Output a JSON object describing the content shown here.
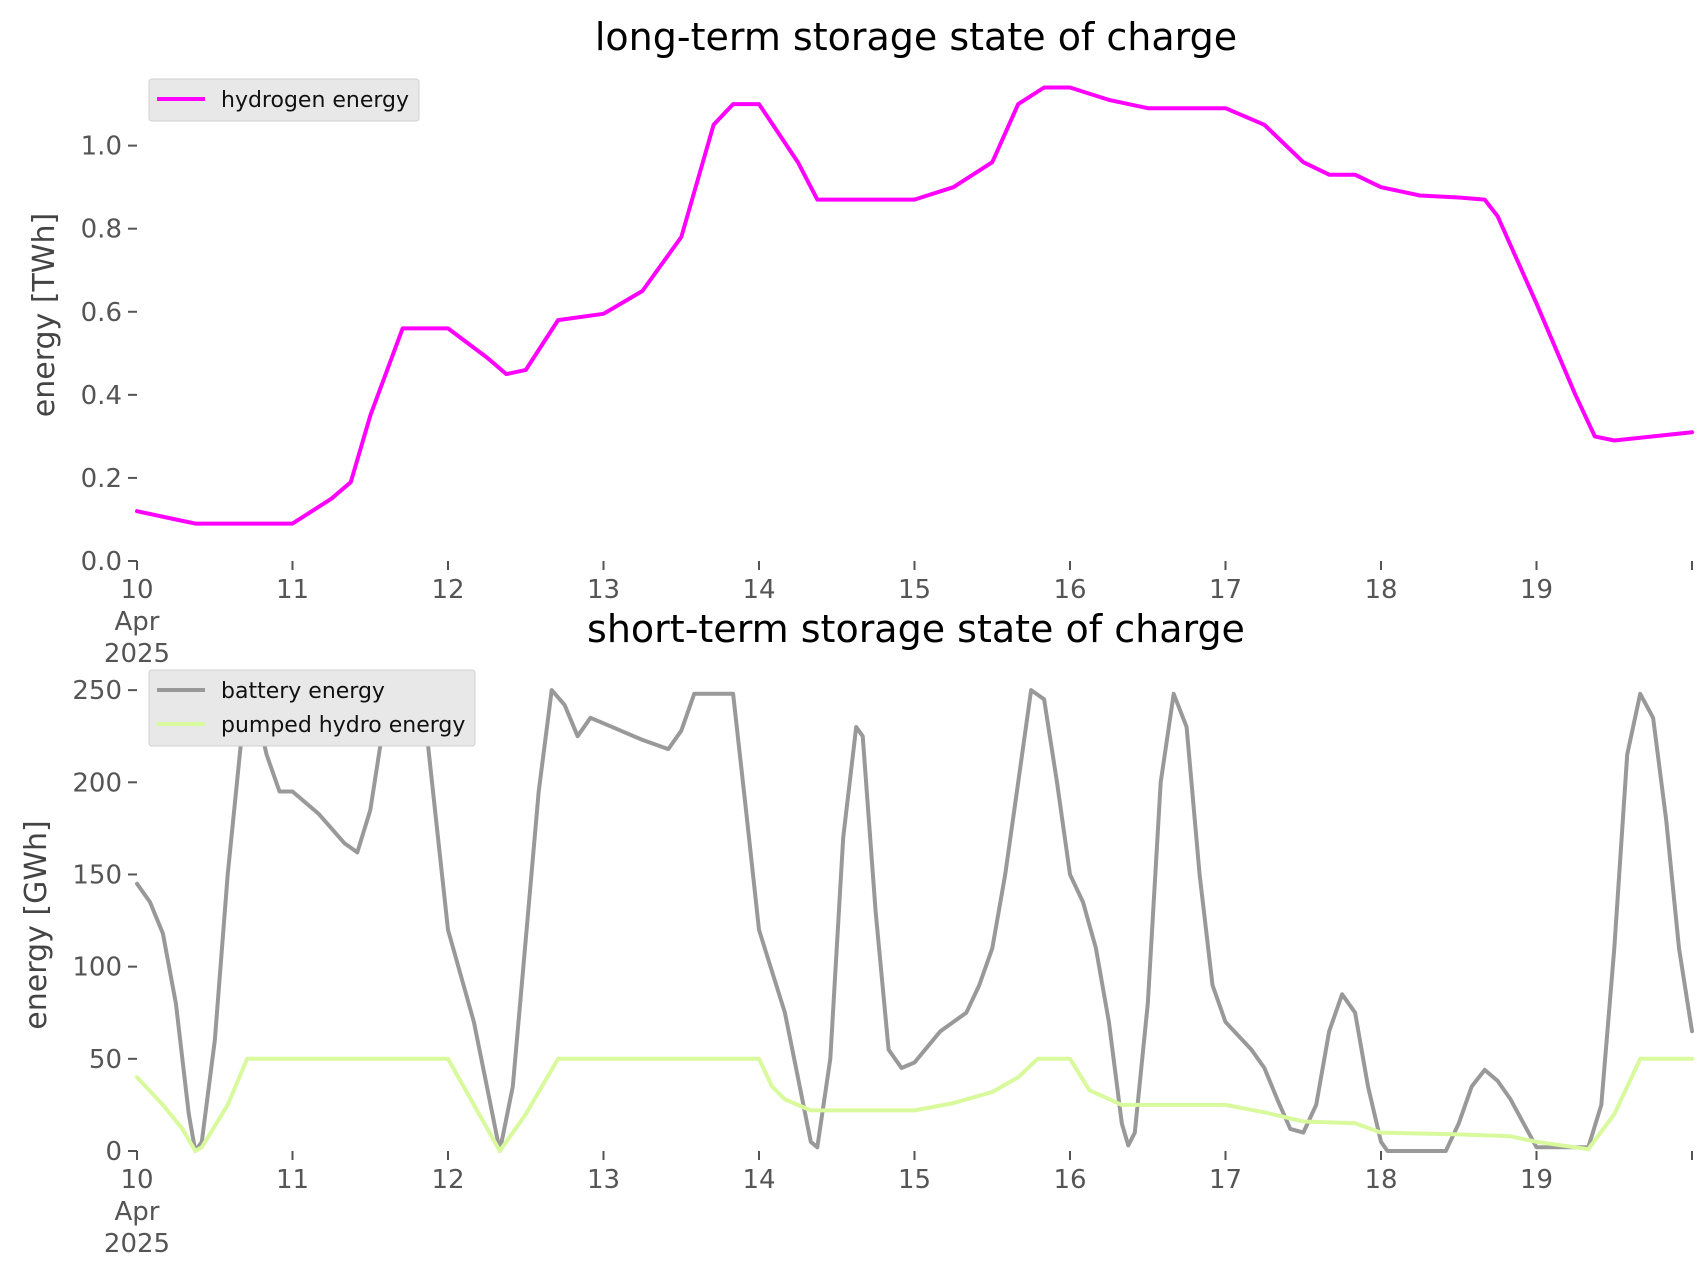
{
  "chart_data": [
    {
      "type": "line",
      "title": "long-term storage state of charge",
      "xlabel": "",
      "ylabel": "energy [TWh]",
      "xlim": [
        "2025-04-10",
        "2025-04-20"
      ],
      "ylim": [
        0,
        1.17
      ],
      "x_ticks": [
        {
          "date": "2025-04-10",
          "lines": [
            "10",
            "Apr",
            "2025"
          ]
        },
        {
          "date": "2025-04-11",
          "lines": [
            "11"
          ]
        },
        {
          "date": "2025-04-12",
          "lines": [
            "12"
          ]
        },
        {
          "date": "2025-04-13",
          "lines": [
            "13"
          ]
        },
        {
          "date": "2025-04-14",
          "lines": [
            "14"
          ]
        },
        {
          "date": "2025-04-15",
          "lines": [
            "15"
          ]
        },
        {
          "date": "2025-04-16",
          "lines": [
            "16"
          ]
        },
        {
          "date": "2025-04-17",
          "lines": [
            "17"
          ]
        },
        {
          "date": "2025-04-18",
          "lines": [
            "18"
          ]
        },
        {
          "date": "2025-04-19",
          "lines": [
            "19"
          ]
        },
        {
          "date": "2025-04-20",
          "lines": [
            ""
          ]
        }
      ],
      "y_ticks": [
        {
          "value": 0.0,
          "label": "0.0"
        },
        {
          "value": 0.2,
          "label": "0.2"
        },
        {
          "value": 0.4,
          "label": "0.4"
        },
        {
          "value": 0.6,
          "label": "0.6"
        },
        {
          "value": 0.8,
          "label": "0.8"
        },
        {
          "value": 1.0,
          "label": "1.0"
        }
      ],
      "grid": false,
      "legend_position": "top-left",
      "series": [
        {
          "name": "hydrogen energy",
          "color": "#ff00ff",
          "points": [
            [
              "2025-04-10T00:00",
              0.12
            ],
            [
              "2025-04-10T06:00",
              0.1
            ],
            [
              "2025-04-10T09:00",
              0.09
            ],
            [
              "2025-04-11T00:00",
              0.09
            ],
            [
              "2025-04-11T06:00",
              0.15
            ],
            [
              "2025-04-11T09:00",
              0.19
            ],
            [
              "2025-04-11T12:00",
              0.35
            ],
            [
              "2025-04-11T17:00",
              0.56
            ],
            [
              "2025-04-12T00:00",
              0.56
            ],
            [
              "2025-04-12T06:00",
              0.49
            ],
            [
              "2025-04-12T09:00",
              0.45
            ],
            [
              "2025-04-12T12:00",
              0.46
            ],
            [
              "2025-04-12T17:00",
              0.58
            ],
            [
              "2025-04-13T00:00",
              0.595
            ],
            [
              "2025-04-13T06:00",
              0.65
            ],
            [
              "2025-04-13T12:00",
              0.78
            ],
            [
              "2025-04-13T17:00",
              1.05
            ],
            [
              "2025-04-13T20:00",
              1.1
            ],
            [
              "2025-04-14T00:00",
              1.1
            ],
            [
              "2025-04-14T06:00",
              0.96
            ],
            [
              "2025-04-14T09:00",
              0.87
            ],
            [
              "2025-04-15T00:00",
              0.87
            ],
            [
              "2025-04-15T06:00",
              0.9
            ],
            [
              "2025-04-15T12:00",
              0.96
            ],
            [
              "2025-04-15T16:00",
              1.1
            ],
            [
              "2025-04-15T20:00",
              1.14
            ],
            [
              "2025-04-16T00:00",
              1.14
            ],
            [
              "2025-04-16T06:00",
              1.11
            ],
            [
              "2025-04-16T12:00",
              1.09
            ],
            [
              "2025-04-17T00:00",
              1.09
            ],
            [
              "2025-04-17T06:00",
              1.05
            ],
            [
              "2025-04-17T12:00",
              0.96
            ],
            [
              "2025-04-17T16:00",
              0.93
            ],
            [
              "2025-04-17T20:00",
              0.93
            ],
            [
              "2025-04-18T00:00",
              0.9
            ],
            [
              "2025-04-18T06:00",
              0.88
            ],
            [
              "2025-04-18T12:00",
              0.875
            ],
            [
              "2025-04-18T16:00",
              0.87
            ],
            [
              "2025-04-18T18:00",
              0.83
            ],
            [
              "2025-04-19T00:00",
              0.62
            ],
            [
              "2025-04-19T06:00",
              0.4
            ],
            [
              "2025-04-19T09:00",
              0.3
            ],
            [
              "2025-04-19T12:00",
              0.29
            ],
            [
              "2025-04-19T18:00",
              0.3
            ],
            [
              "2025-04-20T00:00",
              0.31
            ]
          ]
        }
      ]
    },
    {
      "type": "line",
      "title": "short-term storage state of charge",
      "xlabel": "",
      "ylabel": "energy [GWh]",
      "xlim": [
        "2025-04-10",
        "2025-04-20"
      ],
      "ylim": [
        0,
        262
      ],
      "x_ticks": [
        {
          "date": "2025-04-10",
          "lines": [
            "10",
            "Apr",
            "2025"
          ]
        },
        {
          "date": "2025-04-11",
          "lines": [
            "11"
          ]
        },
        {
          "date": "2025-04-12",
          "lines": [
            "12"
          ]
        },
        {
          "date": "2025-04-13",
          "lines": [
            "13"
          ]
        },
        {
          "date": "2025-04-14",
          "lines": [
            "14"
          ]
        },
        {
          "date": "2025-04-15",
          "lines": [
            "15"
          ]
        },
        {
          "date": "2025-04-16",
          "lines": [
            "16"
          ]
        },
        {
          "date": "2025-04-17",
          "lines": [
            "17"
          ]
        },
        {
          "date": "2025-04-18",
          "lines": [
            "18"
          ]
        },
        {
          "date": "2025-04-19",
          "lines": [
            "19"
          ]
        },
        {
          "date": "2025-04-20",
          "lines": [
            ""
          ]
        }
      ],
      "y_ticks": [
        {
          "value": 0,
          "label": "0"
        },
        {
          "value": 50,
          "label": "50"
        },
        {
          "value": 100,
          "label": "100"
        },
        {
          "value": 150,
          "label": "150"
        },
        {
          "value": 200,
          "label": "200"
        },
        {
          "value": 250,
          "label": "250"
        }
      ],
      "grid": false,
      "legend_position": "top-left",
      "series": [
        {
          "name": "battery energy",
          "color": "#999999",
          "points": [
            [
              "2025-04-10T00:00",
              145
            ],
            [
              "2025-04-10T02:00",
              135
            ],
            [
              "2025-04-10T04:00",
              118
            ],
            [
              "2025-04-10T06:00",
              80
            ],
            [
              "2025-04-10T08:00",
              20
            ],
            [
              "2025-04-10T09:00",
              0
            ],
            [
              "2025-04-10T10:00",
              5
            ],
            [
              "2025-04-10T12:00",
              60
            ],
            [
              "2025-04-10T14:00",
              150
            ],
            [
              "2025-04-10T16:00",
              220
            ],
            [
              "2025-04-10T18:00",
              245
            ],
            [
              "2025-04-10T20:00",
              215
            ],
            [
              "2025-04-10T22:00",
              195
            ],
            [
              "2025-04-11T00:00",
              195
            ],
            [
              "2025-04-11T04:00",
              183
            ],
            [
              "2025-04-11T08:00",
              167
            ],
            [
              "2025-04-11T10:00",
              162
            ],
            [
              "2025-04-11T12:00",
              185
            ],
            [
              "2025-04-11T14:00",
              230
            ],
            [
              "2025-04-11T16:00",
              250
            ],
            [
              "2025-04-11T20:00",
              250
            ],
            [
              "2025-04-11T22:00",
              185
            ],
            [
              "2025-04-12T00:00",
              120
            ],
            [
              "2025-04-12T04:00",
              70
            ],
            [
              "2025-04-12T06:00",
              35
            ],
            [
              "2025-04-12T08:00",
              0
            ],
            [
              "2025-04-12T10:00",
              35
            ],
            [
              "2025-04-12T12:00",
              115
            ],
            [
              "2025-04-12T14:00",
              195
            ],
            [
              "2025-04-12T16:00",
              250
            ],
            [
              "2025-04-12T18:00",
              242
            ],
            [
              "2025-04-12T20:00",
              225
            ],
            [
              "2025-04-12T22:00",
              235
            ],
            [
              "2025-04-13T00:00",
              232
            ],
            [
              "2025-04-13T06:00",
              223
            ],
            [
              "2025-04-13T10:00",
              218
            ],
            [
              "2025-04-13T12:00",
              228
            ],
            [
              "2025-04-13T14:00",
              248
            ],
            [
              "2025-04-13T20:00",
              248
            ],
            [
              "2025-04-13T22:00",
              185
            ],
            [
              "2025-04-14T00:00",
              120
            ],
            [
              "2025-04-14T04:00",
              75
            ],
            [
              "2025-04-14T06:00",
              40
            ],
            [
              "2025-04-14T08:00",
              5
            ],
            [
              "2025-04-14T09:00",
              2
            ],
            [
              "2025-04-14T11:00",
              50
            ],
            [
              "2025-04-14T13:00",
              170
            ],
            [
              "2025-04-14T15:00",
              230
            ],
            [
              "2025-04-14T16:00",
              225
            ],
            [
              "2025-04-14T18:00",
              130
            ],
            [
              "2025-04-14T20:00",
              55
            ],
            [
              "2025-04-14T22:00",
              45
            ],
            [
              "2025-04-15T00:00",
              48
            ],
            [
              "2025-04-15T04:00",
              65
            ],
            [
              "2025-04-15T08:00",
              75
            ],
            [
              "2025-04-15T10:00",
              90
            ],
            [
              "2025-04-15T12:00",
              110
            ],
            [
              "2025-04-15T14:00",
              150
            ],
            [
              "2025-04-15T16:00",
              200
            ],
            [
              "2025-04-15T18:00",
              250
            ],
            [
              "2025-04-15T20:00",
              245
            ],
            [
              "2025-04-15T22:00",
              200
            ],
            [
              "2025-04-16T00:00",
              150
            ],
            [
              "2025-04-16T02:00",
              135
            ],
            [
              "2025-04-16T04:00",
              110
            ],
            [
              "2025-04-16T06:00",
              70
            ],
            [
              "2025-04-16T08:00",
              15
            ],
            [
              "2025-04-16T09:00",
              3
            ],
            [
              "2025-04-16T10:00",
              10
            ],
            [
              "2025-04-16T12:00",
              80
            ],
            [
              "2025-04-16T14:00",
              200
            ],
            [
              "2025-04-16T16:00",
              248
            ],
            [
              "2025-04-16T18:00",
              230
            ],
            [
              "2025-04-16T20:00",
              150
            ],
            [
              "2025-04-16T22:00",
              90
            ],
            [
              "2025-04-17T00:00",
              70
            ],
            [
              "2025-04-17T04:00",
              55
            ],
            [
              "2025-04-17T06:00",
              45
            ],
            [
              "2025-04-17T08:00",
              28
            ],
            [
              "2025-04-17T10:00",
              12
            ],
            [
              "2025-04-17T12:00",
              10
            ],
            [
              "2025-04-17T14:00",
              25
            ],
            [
              "2025-04-17T16:00",
              65
            ],
            [
              "2025-04-17T18:00",
              85
            ],
            [
              "2025-04-17T20:00",
              75
            ],
            [
              "2025-04-17T22:00",
              35
            ],
            [
              "2025-04-18T00:00",
              5
            ],
            [
              "2025-04-18T01:00",
              0
            ],
            [
              "2025-04-18T10:00",
              0
            ],
            [
              "2025-04-18T12:00",
              15
            ],
            [
              "2025-04-18T14:00",
              35
            ],
            [
              "2025-04-18T16:00",
              44
            ],
            [
              "2025-04-18T18:00",
              38
            ],
            [
              "2025-04-18T20:00",
              28
            ],
            [
              "2025-04-18T22:00",
              15
            ],
            [
              "2025-04-19T00:00",
              2
            ],
            [
              "2025-04-19T08:00",
              2
            ],
            [
              "2025-04-19T10:00",
              25
            ],
            [
              "2025-04-19T12:00",
              110
            ],
            [
              "2025-04-19T14:00",
              215
            ],
            [
              "2025-04-19T16:00",
              248
            ],
            [
              "2025-04-19T18:00",
              235
            ],
            [
              "2025-04-19T20:00",
              180
            ],
            [
              "2025-04-19T22:00",
              110
            ],
            [
              "2025-04-20T00:00",
              65
            ]
          ]
        },
        {
          "name": "pumped hydro energy",
          "color": "#d9f99d",
          "points": [
            [
              "2025-04-10T00:00",
              40
            ],
            [
              "2025-04-10T04:00",
              25
            ],
            [
              "2025-04-10T07:00",
              12
            ],
            [
              "2025-04-10T09:00",
              0
            ],
            [
              "2025-04-10T10:00",
              2
            ],
            [
              "2025-04-10T14:00",
              25
            ],
            [
              "2025-04-10T17:00",
              50
            ],
            [
              "2025-04-11T00:00",
              50
            ],
            [
              "2025-04-11T12:00",
              50
            ],
            [
              "2025-04-12T00:00",
              50
            ],
            [
              "2025-04-12T04:00",
              25
            ],
            [
              "2025-04-12T08:00",
              0
            ],
            [
              "2025-04-12T12:00",
              20
            ],
            [
              "2025-04-12T17:00",
              50
            ],
            [
              "2025-04-13T00:00",
              50
            ],
            [
              "2025-04-14T00:00",
              50
            ],
            [
              "2025-04-14T02:00",
              35
            ],
            [
              "2025-04-14T04:00",
              28
            ],
            [
              "2025-04-14T08:00",
              22
            ],
            [
              "2025-04-15T00:00",
              22
            ],
            [
              "2025-04-15T06:00",
              26
            ],
            [
              "2025-04-15T12:00",
              32
            ],
            [
              "2025-04-15T16:00",
              40
            ],
            [
              "2025-04-15T19:00",
              50
            ],
            [
              "2025-04-16T00:00",
              50
            ],
            [
              "2025-04-16T03:00",
              33
            ],
            [
              "2025-04-16T08:00",
              25
            ],
            [
              "2025-04-17T00:00",
              25
            ],
            [
              "2025-04-17T06:00",
              21
            ],
            [
              "2025-04-17T12:00",
              16
            ],
            [
              "2025-04-17T20:00",
              15
            ],
            [
              "2025-04-18T00:00",
              10
            ],
            [
              "2025-04-18T12:00",
              9
            ],
            [
              "2025-04-18T20:00",
              8
            ],
            [
              "2025-04-19T00:00",
              5
            ],
            [
              "2025-04-19T08:00",
              1
            ],
            [
              "2025-04-19T12:00",
              20
            ],
            [
              "2025-04-19T16:00",
              50
            ],
            [
              "2025-04-20T00:00",
              50
            ]
          ]
        }
      ]
    }
  ]
}
